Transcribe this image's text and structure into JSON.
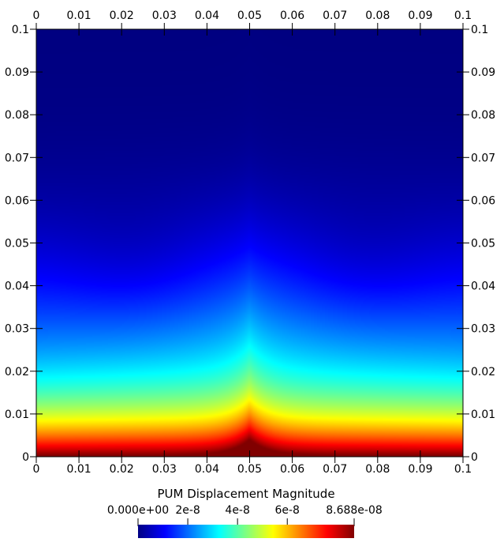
{
  "chart_data": {
    "type": "heatmap",
    "title": "",
    "xlabel": "",
    "ylabel": "",
    "xlim": [
      0,
      0.1
    ],
    "ylim": [
      0,
      0.1
    ],
    "grid": false,
    "x_ticks": [
      "0",
      "0.01",
      "0.02",
      "0.03",
      "0.04",
      "0.05",
      "0.06",
      "0.07",
      "0.08",
      "0.09",
      "0.1"
    ],
    "y_ticks": [
      "0",
      "0.01",
      "0.02",
      "0.03",
      "0.04",
      "0.05",
      "0.06",
      "0.07",
      "0.08",
      "0.09",
      "0.1"
    ],
    "x_tick_values": [
      0,
      0.01,
      0.02,
      0.03,
      0.04,
      0.05,
      0.06,
      0.07,
      0.08,
      0.09,
      0.1
    ],
    "y_tick_values": [
      0,
      0.01,
      0.02,
      0.03,
      0.04,
      0.05,
      0.06,
      0.07,
      0.08,
      0.09,
      0.1
    ],
    "field_description": {
      "max_value": 8.688e-08,
      "min_value": 0,
      "high_along": "bottom edge (y = 0)",
      "cusp_location": [
        0.05,
        0.02
      ],
      "low_regions_near": [
        [
          0.024,
          0.043
        ],
        [
          0.076,
          0.043
        ]
      ]
    },
    "colorbar": {
      "title": "PUM Displacement Magnitude",
      "min": 0,
      "max": 8.688e-08,
      "tick_labels": [
        "0.000e+00",
        "2e-8",
        "4e-8",
        "6e-8",
        "8.688e-08"
      ],
      "tick_values": [
        0,
        2e-08,
        4e-08,
        6e-08,
        8.688e-08
      ],
      "colormap": "jet"
    }
  }
}
